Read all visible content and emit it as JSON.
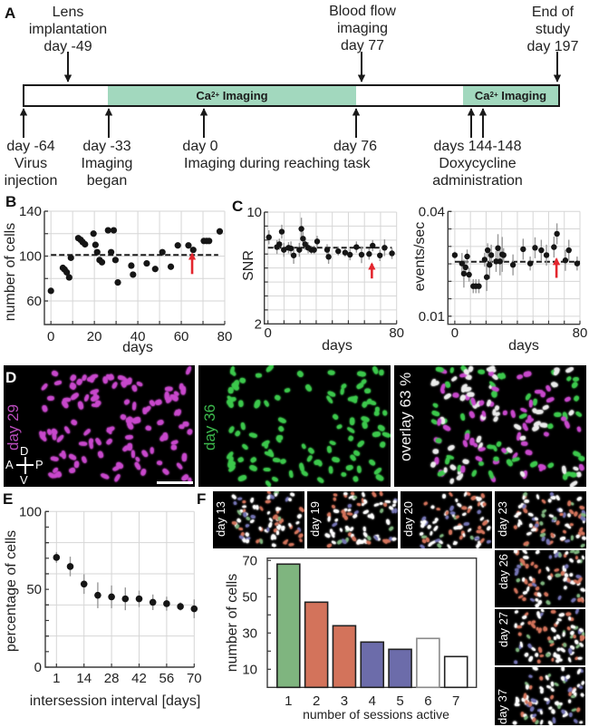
{
  "panel_labels": {
    "a": "A",
    "b": "B",
    "c": "C",
    "d": "D",
    "e": "E",
    "f": "F"
  },
  "timeline": {
    "top_events": [
      {
        "lines": [
          "Lens",
          "implantation",
          "day -49"
        ]
      },
      {
        "lines": [
          "Blood flow",
          "imaging",
          "day 77"
        ]
      },
      {
        "lines": [
          "End of",
          "study",
          "day 197"
        ]
      }
    ],
    "bottom_events": [
      {
        "lines": [
          "day -64",
          "Virus",
          "injection"
        ]
      },
      {
        "lines": [
          "day -33",
          "Imaging",
          "began"
        ]
      },
      {
        "lines": [
          "day 0"
        ]
      },
      {
        "lines": [
          "day 76"
        ]
      },
      {
        "lines": [
          "days 144-148",
          "Doxycycline",
          "administration"
        ]
      }
    ],
    "reaching_task_label": "Imaging during reaching task",
    "imaging_segments": [
      {
        "prefix": "Ca",
        "superscript": "2+",
        "suffix": " Imaging"
      },
      {
        "prefix": "Ca",
        "superscript": "2+",
        "suffix": " Imaging"
      }
    ],
    "segment_color": "#a2d8be"
  },
  "micrographs": {
    "d": [
      {
        "label": "day 29",
        "label_color": "#b94cbc",
        "palette": [
          "#c848cc"
        ]
      },
      {
        "label": "day 36",
        "label_color": "#3cb84c",
        "palette": [
          "#3cc84c"
        ]
      },
      {
        "label": "overlay 63 %",
        "label_color": "#f2f2f2",
        "palette": [
          "#ececec",
          "#c848cc",
          "#3cc84c"
        ]
      }
    ],
    "compass": {
      "d": "D",
      "a": "A",
      "p": "P",
      "v": "V"
    },
    "f": [
      {
        "label": "day 13"
      },
      {
        "label": "day 19"
      },
      {
        "label": "day 20"
      },
      {
        "label": "day 23"
      },
      {
        "label": "day 26"
      },
      {
        "label": "day 27"
      },
      {
        "label": "day 37"
      }
    ],
    "f_palette": [
      "#ffffff",
      "#d3735b",
      "#7474b4",
      "#7fb57f"
    ]
  },
  "chart_data": [
    {
      "key": "B",
      "type": "scatter",
      "title": "",
      "xlabel": "days",
      "ylabel": "number of cells",
      "xlim": [
        -3,
        80
      ],
      "ylim": [
        39,
        140
      ],
      "xticks": [
        0,
        20,
        40,
        60,
        80
      ],
      "xtick_labels": [
        "0",
        "20",
        "40",
        "60",
        "80"
      ],
      "yticks": [
        60,
        100,
        140
      ],
      "ytick_labels": [
        "60",
        "100",
        "140"
      ],
      "xgrid": [
        0,
        10,
        20,
        30,
        40,
        50,
        60,
        70,
        80
      ],
      "ygrid": [
        60,
        80,
        100,
        120,
        140
      ],
      "grid": true,
      "points": [
        {
          "x": 0,
          "y": 69
        },
        {
          "x": 5.5,
          "y": 89.5
        },
        {
          "x": 6.3,
          "y": 88
        },
        {
          "x": 7.3,
          "y": 85.5
        },
        {
          "x": 8.4,
          "y": 81
        },
        {
          "x": 9.2,
          "y": 98.5
        },
        {
          "x": 12.6,
          "y": 116
        },
        {
          "x": 13.7,
          "y": 114.5
        },
        {
          "x": 14.6,
          "y": 112.5
        },
        {
          "x": 15.7,
          "y": 110.5
        },
        {
          "x": 19.6,
          "y": 120
        },
        {
          "x": 20.5,
          "y": 110
        },
        {
          "x": 21.3,
          "y": 103.5
        },
        {
          "x": 22.4,
          "y": 96.5
        },
        {
          "x": 23.5,
          "y": 94.5
        },
        {
          "x": 26.3,
          "y": 123
        },
        {
          "x": 27.7,
          "y": 103.5
        },
        {
          "x": 28.9,
          "y": 123
        },
        {
          "x": 29.7,
          "y": 96.5
        },
        {
          "x": 30.8,
          "y": 76.5
        },
        {
          "x": 37,
          "y": 91.5
        },
        {
          "x": 37.8,
          "y": 83.5
        },
        {
          "x": 44.1,
          "y": 93.5
        },
        {
          "x": 48,
          "y": 88.5
        },
        {
          "x": 51.3,
          "y": 103.5
        },
        {
          "x": 55.2,
          "y": 90.5
        },
        {
          "x": 58.4,
          "y": 109.5
        },
        {
          "x": 63.3,
          "y": 109.5
        },
        {
          "x": 65.5,
          "y": 105.5
        },
        {
          "x": 70.4,
          "y": 113.5
        },
        {
          "x": 71.7,
          "y": 113.5
        },
        {
          "x": 72.8,
          "y": 113.5
        },
        {
          "x": 77.7,
          "y": 122
        }
      ],
      "reference_line": {
        "y": 101,
        "x_from": 0,
        "x_to": 77,
        "style": "dashed"
      },
      "arrow": {
        "x": 65,
        "y_from": 84,
        "y_to": 102,
        "color": "#e3262e"
      }
    },
    {
      "key": "C_snr",
      "type": "scatter",
      "title": "",
      "xlabel": "days",
      "ylabel": "SNR",
      "xlim": [
        -2.25,
        80
      ],
      "ylim": [
        2,
        10
      ],
      "xticks": [
        0,
        80
      ],
      "xtick_labels": [
        "0",
        "80"
      ],
      "yticks": [
        2,
        10
      ],
      "ytick_labels": [
        "2",
        "10"
      ],
      "xgrid": [
        0,
        10,
        20,
        30,
        40,
        50,
        60,
        70,
        80
      ],
      "ygrid": [
        3,
        4,
        5,
        6,
        7,
        8,
        9,
        10
      ],
      "grid": true,
      "points": [
        {
          "x": 0.6,
          "y": 8.2,
          "err": 0.5
        },
        {
          "x": 5.6,
          "y": 7.5,
          "err": 0.5
        },
        {
          "x": 7.1,
          "y": 7.7,
          "err": 0.4
        },
        {
          "x": 8.6,
          "y": 8.6,
          "err": 0.5
        },
        {
          "x": 9.9,
          "y": 7.3,
          "err": 0.5
        },
        {
          "x": 12.8,
          "y": 7.45,
          "err": 0.4
        },
        {
          "x": 14.3,
          "y": 7.4,
          "err": 0.5
        },
        {
          "x": 16,
          "y": 6.9,
          "err": 0.6
        },
        {
          "x": 19.5,
          "y": 7.3,
          "err": 0.5
        },
        {
          "x": 20.8,
          "y": 8.8,
          "err": 0.8
        },
        {
          "x": 21.8,
          "y": 8.1,
          "err": 0.5
        },
        {
          "x": 23.1,
          "y": 7.7,
          "err": 0.4
        },
        {
          "x": 25,
          "y": 7.45,
          "err": 0.4
        },
        {
          "x": 27,
          "y": 7.3,
          "err": 0.3
        },
        {
          "x": 28.7,
          "y": 7.3,
          "err": 0.3
        },
        {
          "x": 30.6,
          "y": 7.9,
          "err": 0.4
        },
        {
          "x": 36.8,
          "y": 7.3,
          "err": 0.4
        },
        {
          "x": 37.7,
          "y": 6.8,
          "err": 0.5
        },
        {
          "x": 43.7,
          "y": 7.2,
          "err": 0.3
        },
        {
          "x": 48,
          "y": 7.1,
          "err": 0.3
        },
        {
          "x": 51,
          "y": 6.95,
          "err": 0.4
        },
        {
          "x": 55,
          "y": 7.5,
          "err": 0.4
        },
        {
          "x": 58.2,
          "y": 6.95,
          "err": 0.6
        },
        {
          "x": 62.9,
          "y": 7.0,
          "err": 0.4
        },
        {
          "x": 65.1,
          "y": 7.6,
          "err": 0.4
        },
        {
          "x": 69.6,
          "y": 6.9,
          "err": 0.4
        },
        {
          "x": 72.5,
          "y": 7.45,
          "err": 0.6
        },
        {
          "x": 77.1,
          "y": 7.05,
          "err": 0.4
        }
      ],
      "reference_line": {
        "y": 7.45,
        "x_from": 0,
        "x_to": 77,
        "style": "dashed"
      },
      "arrow": {
        "x": 64.6,
        "y_from": 5.25,
        "y_to": 6.3,
        "color": "#e3262e"
      }
    },
    {
      "key": "C_events",
      "type": "scatter",
      "title": "",
      "xlabel": "days",
      "ylabel": "events/sec",
      "xlim": [
        -4.4,
        80
      ],
      "ylim": [
        0.0077,
        0.04
      ],
      "xticks": [
        0,
        80
      ],
      "xtick_labels": [
        "0",
        "80"
      ],
      "yticks": [
        0.01,
        0.04
      ],
      "ytick_labels": [
        "0.01",
        "0.04"
      ],
      "xgrid": [
        0,
        10,
        20,
        30,
        40,
        50,
        60,
        70,
        80
      ],
      "ygrid": [
        0.01,
        0.015,
        0.02,
        0.025,
        0.03,
        0.035,
        0.04
      ],
      "grid": true,
      "points": [
        {
          "x": 0,
          "y": 0.0275,
          "err": 0.001
        },
        {
          "x": 4.6,
          "y": 0.0251,
          "err": 0.003
        },
        {
          "x": 5.8,
          "y": 0.0222,
          "err": 0.004
        },
        {
          "x": 6.9,
          "y": 0.024,
          "err": 0.002
        },
        {
          "x": 7.9,
          "y": 0.0271,
          "err": 0.002
        },
        {
          "x": 9.1,
          "y": 0.0219,
          "err": 0.002
        },
        {
          "x": 11.8,
          "y": 0.0186,
          "err": 0.002
        },
        {
          "x": 13.5,
          "y": 0.0186,
          "err": 0.002
        },
        {
          "x": 15.4,
          "y": 0.0186,
          "err": 0.002
        },
        {
          "x": 19.1,
          "y": 0.0262,
          "err": 0.002
        },
        {
          "x": 20.4,
          "y": 0.0212,
          "err": 0.004
        },
        {
          "x": 21,
          "y": 0.0289,
          "err": 0.002
        },
        {
          "x": 22.2,
          "y": 0.0247,
          "err": 0.004
        },
        {
          "x": 23.3,
          "y": 0.0275,
          "err": 0.003
        },
        {
          "x": 26.4,
          "y": 0.0257,
          "err": 0.003
        },
        {
          "x": 27.6,
          "y": 0.0295,
          "err": 0.004
        },
        {
          "x": 28.9,
          "y": 0.0257,
          "err": 0.004
        },
        {
          "x": 30.3,
          "y": 0.0277,
          "err": 0.005
        },
        {
          "x": 31.2,
          "y": 0.0275,
          "err": 0.002
        },
        {
          "x": 37.2,
          "y": 0.0247,
          "err": 0.003
        },
        {
          "x": 43.7,
          "y": 0.0292,
          "err": 0.003
        },
        {
          "x": 48.2,
          "y": 0.0251,
          "err": 0.002
        },
        {
          "x": 51.3,
          "y": 0.0296,
          "err": 0.003
        },
        {
          "x": 55.3,
          "y": 0.0289,
          "err": 0.003
        },
        {
          "x": 58.6,
          "y": 0.0275,
          "err": 0.003
        },
        {
          "x": 63.4,
          "y": 0.0298,
          "err": 0.003
        },
        {
          "x": 65.3,
          "y": 0.0336,
          "err": 0.003
        },
        {
          "x": 70.7,
          "y": 0.026,
          "err": 0.003
        },
        {
          "x": 72.9,
          "y": 0.0289,
          "err": 0.003
        },
        {
          "x": 78.2,
          "y": 0.0251,
          "err": 0.002
        }
      ],
      "reference_line": {
        "y": 0.0256,
        "x_from": 0,
        "x_to": 80,
        "style": "dashed"
      },
      "arrow": {
        "x": 65,
        "y_from": 0.021,
        "y_to": 0.0264,
        "color": "#e3262e"
      }
    },
    {
      "key": "E",
      "type": "scatter",
      "title": "",
      "xlabel": "intersession interval [days]",
      "ylabel": "percentage of cells",
      "categories": [
        "1",
        "7",
        "14",
        "21",
        "28",
        "35",
        "42",
        "49",
        "56",
        "63",
        "70"
      ],
      "values": [
        70.5,
        64.7,
        53.4,
        46.2,
        45.2,
        43.9,
        43.9,
        41.7,
        40.8,
        39.0,
        37.5
      ],
      "errors": [
        3.5,
        6.3,
        6.3,
        8.3,
        7.3,
        7.3,
        5.3,
        5.0,
        4.5,
        2.6,
        6.0
      ],
      "ylim": [
        0,
        100
      ],
      "xtick_labels": [
        "1",
        "14",
        "28",
        "42",
        "56",
        "70"
      ],
      "yticks": [
        0,
        50,
        100
      ],
      "ytick_labels": [
        "0",
        "50",
        "100"
      ],
      "yminor_ticks": [
        10,
        20,
        30,
        40,
        60,
        70,
        80,
        90
      ],
      "ygrid": [
        20,
        40,
        60,
        80,
        100
      ],
      "grid": true
    },
    {
      "key": "F",
      "type": "bar",
      "title": "",
      "xlabel": "number of sessions active",
      "ylabel": "number of cells",
      "categories": [
        "1",
        "2",
        "3",
        "4",
        "5",
        "6",
        "7"
      ],
      "values": [
        68,
        47,
        34,
        25,
        21,
        27,
        17
      ],
      "bar_colors": [
        "#7fb57f",
        "#d3735b",
        "#d3735b",
        "#6c6caa",
        "#6c6caa",
        "#ffffff",
        "#ffffff"
      ],
      "bar_edge_colors": [
        "#222222",
        "#222222",
        "#222222",
        "#222222",
        "#222222",
        "#8a8a8a",
        "#222222"
      ],
      "ylim": [
        0,
        71.3
      ],
      "yticks": [
        10,
        30,
        50,
        70
      ],
      "ytick_labels": [
        "10",
        "30",
        "50",
        "70"
      ],
      "yminor_ticks": [
        20,
        40,
        60
      ],
      "grid": false
    }
  ]
}
